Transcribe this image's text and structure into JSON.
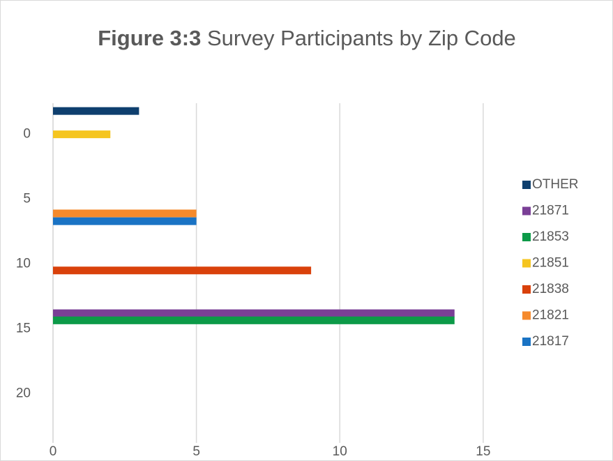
{
  "chart_data": {
    "type": "bar",
    "orientation": "horizontal",
    "title_prefix": "Figure 3:3",
    "title": "Survey Participants by Zip Code",
    "xlim": [
      0,
      16
    ],
    "xticks": [
      0,
      5,
      10,
      15
    ],
    "ylim": [
      -2.4,
      23.8
    ],
    "yticks": [
      0,
      5,
      10,
      15,
      20
    ],
    "y_inverted": true,
    "grid": true,
    "legend": "right",
    "series": [
      {
        "name": "OTHER",
        "color": "#0e3f6e",
        "values": [
          3
        ],
        "y": [
          -1.8
        ]
      },
      {
        "name": "21871",
        "color": "#7a3f96",
        "values": [
          14
        ],
        "y": [
          13.8
        ]
      },
      {
        "name": "21853",
        "color": "#0c9a48",
        "values": [
          14
        ],
        "y": [
          14.35
        ]
      },
      {
        "name": "21851",
        "color": "#f5c520",
        "values": [
          2
        ],
        "y": [
          0
        ]
      },
      {
        "name": "21838",
        "color": "#d9410b",
        "values": [
          9
        ],
        "y": [
          10.5
        ]
      },
      {
        "name": "21821",
        "color": "#f58a2c",
        "values": [
          5
        ],
        "y": [
          6.1
        ]
      },
      {
        "name": "21817",
        "color": "#1a73c4",
        "values": [
          5
        ],
        "y": [
          6.7
        ]
      }
    ]
  }
}
